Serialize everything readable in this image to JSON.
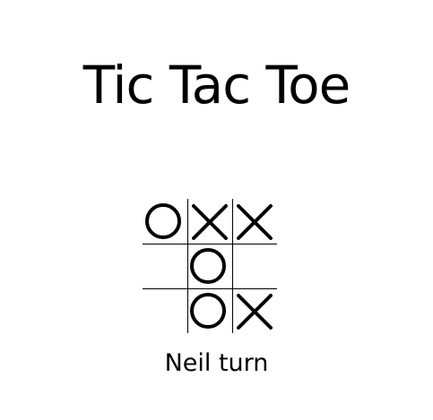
{
  "title": "Tic Tac Toe",
  "board": [
    [
      "O",
      "X",
      "X"
    ],
    [
      "",
      "O",
      ""
    ],
    [
      "",
      "O",
      "X"
    ]
  ],
  "status": "Neil turn",
  "colors": {
    "text": "#000000",
    "background": "#ffffff",
    "grid": "#000000"
  }
}
